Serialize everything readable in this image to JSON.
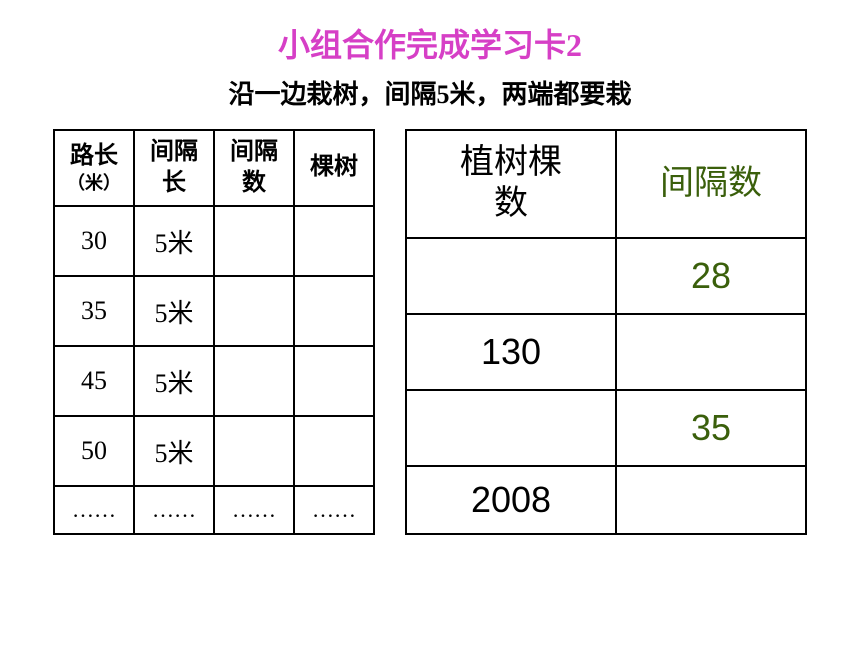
{
  "title": {
    "text": "小组合作完成学习卡2",
    "color": "#d63fc6",
    "fontsize": 32
  },
  "subtitle": {
    "text": "沿一边栽树，间隔5米，两端都要栽",
    "color": "#000000",
    "fontsize": 26
  },
  "left_table": {
    "headers": [
      "路长（米）",
      "间隔长",
      "间隔数",
      "棵树"
    ],
    "rows": [
      [
        "30",
        "5米",
        "",
        ""
      ],
      [
        "35",
        "5米",
        "",
        ""
      ],
      [
        "45",
        "5米",
        "",
        ""
      ],
      [
        "50",
        "5米",
        "",
        ""
      ]
    ],
    "last_row": [
      "……",
      "……",
      "……",
      "……"
    ],
    "text_color": "#000000"
  },
  "right_table": {
    "headers": [
      "植树棵数",
      "间隔数"
    ],
    "header_colors": [
      "#000000",
      "#3a5f0b"
    ],
    "rows": [
      {
        "c1": "",
        "c2": "28",
        "c1_color": "#000000",
        "c2_color": "#3a5f0b"
      },
      {
        "c1": "130",
        "c2": "",
        "c1_color": "#000000",
        "c2_color": "#3a5f0b"
      },
      {
        "c1": "",
        "c2": "35",
        "c1_color": "#000000",
        "c2_color": "#3a5f0b"
      },
      {
        "c1": "2008",
        "c2": "",
        "c1_color": "#000000",
        "c2_color": "#3a5f0b"
      }
    ]
  },
  "styling": {
    "background": "#ffffff",
    "border_color": "#000000",
    "font_family": "SimSun"
  }
}
